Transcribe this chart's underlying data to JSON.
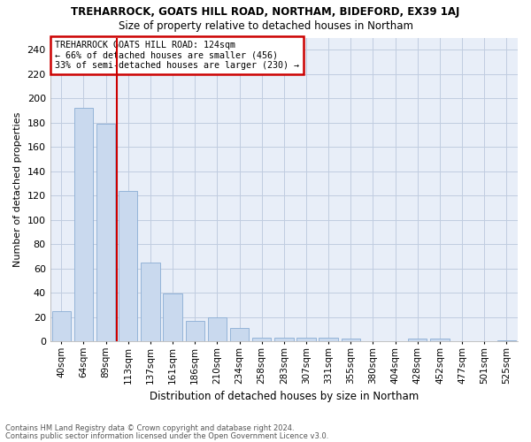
{
  "title": "TREHARROCK, GOATS HILL ROAD, NORTHAM, BIDEFORD, EX39 1AJ",
  "subtitle": "Size of property relative to detached houses in Northam",
  "xlabel": "Distribution of detached houses by size in Northam",
  "ylabel": "Number of detached properties",
  "footnote1": "Contains HM Land Registry data © Crown copyright and database right 2024.",
  "footnote2": "Contains public sector information licensed under the Open Government Licence v3.0.",
  "annotation_line1": "TREHARROCK GOATS HILL ROAD: 124sqm",
  "annotation_line2": "← 66% of detached houses are smaller (456)",
  "annotation_line3": "33% of semi-detached houses are larger (230) →",
  "bar_color": "#c9d9ee",
  "bar_edge_color": "#8aadd4",
  "vline_color": "#cc0000",
  "annotation_box_color": "#cc0000",
  "plot_bg_color": "#e8eef8",
  "categories": [
    "40sqm",
    "64sqm",
    "89sqm",
    "113sqm",
    "137sqm",
    "161sqm",
    "186sqm",
    "210sqm",
    "234sqm",
    "258sqm",
    "283sqm",
    "307sqm",
    "331sqm",
    "355sqm",
    "380sqm",
    "404sqm",
    "428sqm",
    "452sqm",
    "477sqm",
    "501sqm",
    "525sqm"
  ],
  "values": [
    25,
    192,
    179,
    124,
    65,
    39,
    17,
    20,
    11,
    3,
    3,
    3,
    3,
    2,
    0,
    0,
    2,
    2,
    0,
    0,
    1
  ],
  "vline_x": 2.5,
  "ylim": [
    0,
    250
  ],
  "yticks": [
    0,
    20,
    40,
    60,
    80,
    100,
    120,
    140,
    160,
    180,
    200,
    220,
    240
  ],
  "background_color": "#ffffff",
  "grid_color": "#c0cce0"
}
